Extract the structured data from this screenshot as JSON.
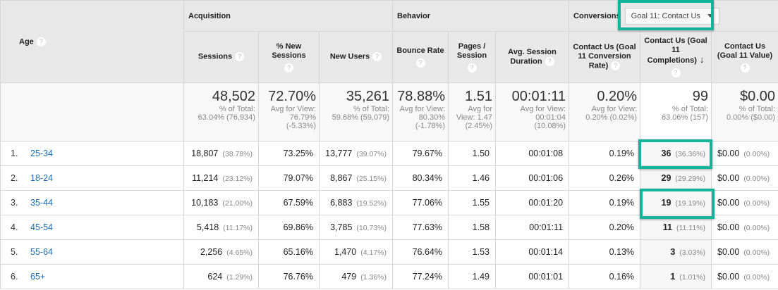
{
  "header": {
    "age": "Age",
    "acquisition": "Acquisition",
    "behavior": "Behavior",
    "conversions": "Conversions",
    "goal_select": "Goal 11: Contact Us",
    "columns": [
      "Sessions",
      "% New Sessions",
      "New Users",
      "Bounce Rate",
      "Pages / Session",
      "Avg. Session Duration",
      "Contact Us (Goal 11 Conversion Rate)",
      "Contact Us (Goal 11 Completions)",
      "Contact Us (Goal 11 Value)"
    ],
    "help": "?",
    "sort_arrow": "↓"
  },
  "summary": [
    {
      "value": "48,502",
      "l1": "% of Total:",
      "l2": "63.04% (76,934)",
      "l3": ""
    },
    {
      "value": "72.70%",
      "l1": "Avg for View:",
      "l2": "76.79%",
      "l3": "(-5.33%)"
    },
    {
      "value": "35,261",
      "l1": "% of Total:",
      "l2": "59.68% (59,079)",
      "l3": ""
    },
    {
      "value": "78.88%",
      "l1": "Avg for View:",
      "l2": "80.30%",
      "l3": "(-1.78%)"
    },
    {
      "value": "1.51",
      "l1": "Avg for",
      "l2": "View: 1.47",
      "l3": "(2.45%)"
    },
    {
      "value": "00:01:11",
      "l1": "Avg for View:",
      "l2": "00:01:04",
      "l3": "(10.08%)"
    },
    {
      "value": "0.20%",
      "l1": "Avg for View:",
      "l2": "0.20% (0.02%)",
      "l3": ""
    },
    {
      "value": "99",
      "l1": "% of Total:",
      "l2": "63.06% (157)",
      "l3": ""
    },
    {
      "value": "$0.00",
      "l1": "% of Total:",
      "l2": "0.00% ($0.00)",
      "l3": ""
    }
  ],
  "rows": [
    {
      "idx": "1.",
      "age": "25-34",
      "sessions": "18,807",
      "sessions_pct": "(38.78%)",
      "new_sessions": "73.25%",
      "new_users": "13,777",
      "new_users_pct": "(39.07%)",
      "bounce": "79.67%",
      "pages": "1.50",
      "duration": "00:01:08",
      "conv_rate": "0.19%",
      "completions": "36",
      "completions_pct": "(36.36%)",
      "value": "$0.00",
      "value_pct": "(0.00%)"
    },
    {
      "idx": "2.",
      "age": "18-24",
      "sessions": "11,214",
      "sessions_pct": "(23.12%)",
      "new_sessions": "79.07%",
      "new_users": "8,867",
      "new_users_pct": "(25.15%)",
      "bounce": "80.34%",
      "pages": "1.46",
      "duration": "00:01:06",
      "conv_rate": "0.26%",
      "completions": "29",
      "completions_pct": "(29.29%)",
      "value": "$0.00",
      "value_pct": "(0.00%)"
    },
    {
      "idx": "3.",
      "age": "35-44",
      "sessions": "10,183",
      "sessions_pct": "(21.00%)",
      "new_sessions": "67.59%",
      "new_users": "6,883",
      "new_users_pct": "(19.52%)",
      "bounce": "77.06%",
      "pages": "1.55",
      "duration": "00:01:20",
      "conv_rate": "0.19%",
      "completions": "19",
      "completions_pct": "(19.19%)",
      "value": "$0.00",
      "value_pct": "(0.00%)"
    },
    {
      "idx": "4.",
      "age": "45-54",
      "sessions": "5,418",
      "sessions_pct": "(11.17%)",
      "new_sessions": "69.86%",
      "new_users": "3,785",
      "new_users_pct": "(10.73%)",
      "bounce": "77.63%",
      "pages": "1.58",
      "duration": "00:01:11",
      "conv_rate": "0.20%",
      "completions": "11",
      "completions_pct": "(11.11%)",
      "value": "$0.00",
      "value_pct": "(0.00%)"
    },
    {
      "idx": "5.",
      "age": "55-64",
      "sessions": "2,256",
      "sessions_pct": "(4.65%)",
      "new_sessions": "65.16%",
      "new_users": "1,470",
      "new_users_pct": "(4.17%)",
      "bounce": "76.64%",
      "pages": "1.53",
      "duration": "00:01:14",
      "conv_rate": "0.13%",
      "completions": "3",
      "completions_pct": "(3.03%)",
      "value": "$0.00",
      "value_pct": "(0.00%)"
    },
    {
      "idx": "6.",
      "age": "65+",
      "sessions": "624",
      "sessions_pct": "(1.29%)",
      "new_sessions": "76.76%",
      "new_users": "479",
      "new_users_pct": "(1.36%)",
      "bounce": "77.24%",
      "pages": "1.49",
      "duration": "00:01:01",
      "conv_rate": "0.16%",
      "completions": "1",
      "completions_pct": "(1.01%)",
      "value": "$0.00",
      "value_pct": "(0.00%)"
    }
  ],
  "colors": {
    "highlight": "#14b39a",
    "link": "#1a6db3"
  }
}
